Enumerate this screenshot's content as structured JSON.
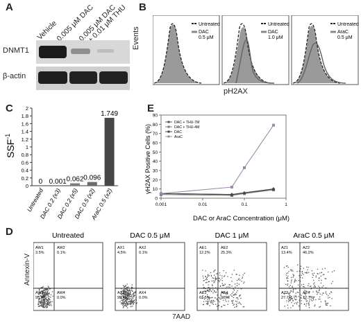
{
  "panelA": {
    "letter": "A",
    "lanes": [
      "Vehicle",
      "0.005 μM DAC",
      "0.005 μM DAC",
      "+ 0.01 μM THU"
    ],
    "rows": [
      "DNMT1",
      "β-actin"
    ]
  },
  "panelB": {
    "letter": "B",
    "plots": [
      {
        "legend_top": "Untreated",
        "legend_mid": "DAC",
        "legend_bot": "0.5 μM"
      },
      {
        "legend_top": "Untreated",
        "legend_mid": "DAC",
        "legend_bot": "1.0 μM"
      },
      {
        "legend_top": "Untreated",
        "legend_mid": "AraC",
        "legend_bot": "0.5 μM"
      }
    ],
    "ylabel": "Events",
    "xlabel": "pH2AX"
  },
  "panelC": {
    "letter": "C",
    "ylabel": "SSF",
    "ylabel_sup": "-1",
    "yticks": [
      "0",
      "0.2",
      "0.4",
      "0.6",
      "0.8",
      "1",
      "1.2",
      "1.4",
      "1.6",
      "1.8",
      "2"
    ]
  },
  "panelE": {
    "letter": "E",
    "ylabel": "γH2AX Positive Cells (%)",
    "xlabel": "DAC or AraC Concentration (μM)",
    "yticks": [
      "0",
      "10",
      "20",
      "30",
      "40",
      "50",
      "60",
      "70",
      "80",
      "90"
    ],
    "xticks": [
      "0.001",
      "0.01",
      "0.1",
      "1"
    ],
    "legend": [
      "DAC + THU-7M",
      "DAC + THU-4M",
      "DAC",
      "AraC"
    ]
  },
  "panelD": {
    "letter": "D",
    "ylabel": "Annexin-V",
    "xlabel": "7AAD",
    "plots": [
      {
        "title": "Untreated",
        "q": [
          "AW1",
          "AW2",
          "AW3",
          "AW4"
        ],
        "p": [
          "3.5%",
          "0.1%",
          "95.4%",
          "0.0%"
        ]
      },
      {
        "title": "DAC 0.5 μM",
        "q": [
          "AX1",
          "AX2",
          "AX3",
          "AX4"
        ],
        "p": [
          "4.5%",
          "0.1%",
          "95.4%",
          "0.0%"
        ]
      },
      {
        "title": "DAC 1 μM",
        "q": [
          "AE1",
          "AE2",
          "AE3",
          "AE4"
        ],
        "p": [
          "12.2%",
          "25.3%",
          "61.5%",
          "0.0%"
        ]
      },
      {
        "title": "AraC 0.5 μM",
        "q": [
          "AZ1",
          "AZ2",
          "AZ3",
          "AZ4"
        ],
        "p": [
          "13.4%",
          "46.2%",
          "27.7%",
          "12.7%"
        ]
      }
    ]
  },
  "chart_data": [
    {
      "type": "bar",
      "panel": "C",
      "categories": [
        "Untreated",
        "DAC 0.2 (x3)",
        "DAC 0.2 (x5)",
        "DAC 0.5 (x2)",
        "AraC 0.5 (x2)"
      ],
      "values": [
        0,
        0.001,
        0.062,
        0.096,
        1.749
      ],
      "data_labels": [
        "0",
        "0.001",
        "0.062",
        "0.096",
        "1.749"
      ],
      "ylabel": "SSF-1",
      "ylim": [
        0,
        2
      ],
      "colors": [
        "#bcbcbc",
        "#9c9c9c",
        "#7d7d7d",
        "#6a6a6a",
        "#474747"
      ]
    },
    {
      "type": "line",
      "panel": "E",
      "xscale": "log",
      "xlim": [
        0.001,
        1
      ],
      "ylim": [
        0,
        90
      ],
      "xlabel": "DAC or AraC Concentration (μM)",
      "ylabel": "γH2AX Positive Cells (%)",
      "legend_position": "top-left",
      "series": [
        {
          "name": "DAC + THU-7M",
          "x": [
            0.001,
            0.05,
            0.1,
            0.5
          ],
          "y": [
            5,
            4,
            5,
            10
          ],
          "color": "#555555",
          "marker": "diamond"
        },
        {
          "name": "DAC + THU-4M",
          "x": [
            0.001,
            0.05,
            0.1,
            0.5
          ],
          "y": [
            4,
            3,
            5,
            9
          ],
          "color": "#777777",
          "marker": "square"
        },
        {
          "name": "DAC",
          "x": [
            0.001,
            0.05,
            0.1,
            0.5
          ],
          "y": [
            5,
            4,
            6,
            10
          ],
          "color": "#444444",
          "marker": "triangle"
        },
        {
          "name": "AraC",
          "x": [
            0.001,
            0.05,
            0.1,
            0.5
          ],
          "y": [
            5,
            12,
            33,
            79
          ],
          "color": "#9a8aa8",
          "marker": "square"
        }
      ]
    }
  ]
}
